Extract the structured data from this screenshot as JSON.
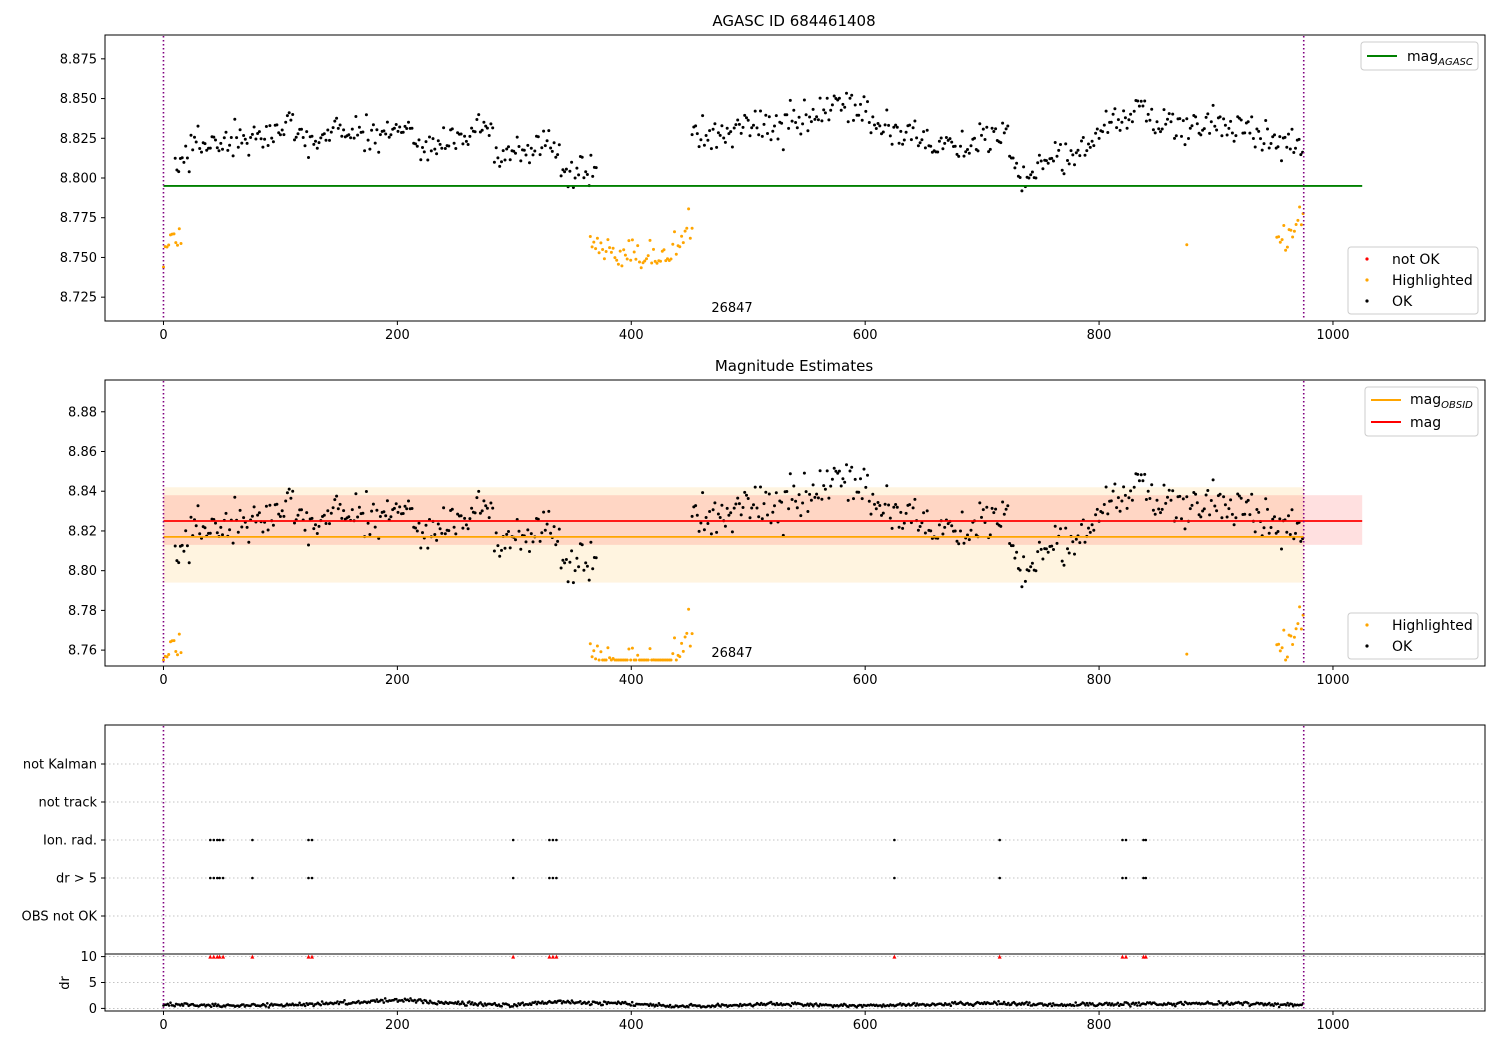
{
  "chart_data": [
    {
      "type": "scatter",
      "title": "AGASC ID 684461408",
      "annotation": "26847",
      "xlim": [
        -50,
        1130
      ],
      "ylim": [
        8.71,
        8.89
      ],
      "xticks": [
        "0",
        "200",
        "400",
        "600",
        "800",
        "1000"
      ],
      "yticks": [
        "8.725",
        "8.750",
        "8.775",
        "8.800",
        "8.825",
        "8.850",
        "8.875"
      ],
      "vlines_x": [
        0,
        975
      ],
      "hline": {
        "name": "mag",
        "subscript": "AGASC",
        "y": 8.795,
        "x": [
          0,
          1025
        ],
        "color": "#008000"
      },
      "legend_lines": [
        {
          "name": "mag",
          "subscript": "AGASC",
          "color": "#008000"
        }
      ],
      "legend_points": [
        {
          "name": "not OK",
          "color": "#ff0000"
        },
        {
          "name": "Highlighted",
          "color": "#ffa500"
        },
        {
          "name": "OK",
          "color": "#000000"
        }
      ],
      "series": [
        {
          "name": "OK",
          "color": "#000000",
          "segments": [
            {
              "x": [
                10,
                370
              ],
              "levels": [
                [
                  10,
                  8.807
                ],
                [
                  30,
                  8.822
                ],
                [
                  60,
                  8.822
                ],
                [
                  90,
                  8.825
                ],
                [
                  110,
                  8.838
                ],
                [
                  125,
                  8.822
                ],
                [
                  150,
                  8.832
                ],
                [
                  175,
                  8.826
                ],
                [
                  200,
                  8.832
                ],
                [
                  230,
                  8.818
                ],
                [
                  260,
                  8.83
                ],
                [
                  275,
                  8.832
                ],
                [
                  290,
                  8.812
                ],
                [
                  310,
                  8.815
                ],
                [
                  330,
                  8.825
                ],
                [
                  345,
                  8.804
                ],
                [
                  365,
                  8.804
                ]
              ]
            },
            {
              "x": [
                452,
                975
              ],
              "levels": [
                [
                  452,
                  8.826
                ],
                [
                  480,
                  8.828
                ],
                [
                  500,
                  8.835
                ],
                [
                  530,
                  8.832
                ],
                [
                  560,
                  8.838
                ],
                [
                  575,
                  8.846
                ],
                [
                  600,
                  8.838
                ],
                [
                  640,
                  8.828
                ],
                [
                  680,
                  8.82
                ],
                [
                  720,
                  8.826
                ],
                [
                  735,
                  8.797
                ],
                [
                  760,
                  8.815
                ],
                [
                  780,
                  8.812
                ],
                [
                  800,
                  8.83
                ],
                [
                  830,
                  8.845
                ],
                [
                  860,
                  8.832
                ],
                [
                  900,
                  8.834
                ],
                [
                  940,
                  8.827
                ],
                [
                  975,
                  8.82
                ]
              ]
            }
          ]
        },
        {
          "name": "Highlighted",
          "color": "#ffa500",
          "segments": [
            {
              "x": [
                0,
                15
              ],
              "levels": [
                [
                  0,
                  8.756
                ],
                [
                  15,
                  8.765
                ]
              ]
            },
            {
              "x": [
                365,
                452
              ],
              "levels": [
                [
                  365,
                  8.756
                ],
                [
                  400,
                  8.755
                ],
                [
                  430,
                  8.748
                ],
                [
                  452,
                  8.768
                ]
              ]
            },
            {
              "x": [
                875,
                875
              ],
              "levels": [
                [
                  875,
                  8.758
                ]
              ]
            },
            {
              "x": [
                952,
                975
              ],
              "levels": [
                [
                  952,
                  8.758
                ],
                [
                  975,
                  8.776
                ]
              ]
            }
          ]
        }
      ]
    },
    {
      "type": "scatter",
      "title": "Magnitude Estimates",
      "annotation": "26847",
      "xlim": [
        -50,
        1130
      ],
      "ylim": [
        8.752,
        8.896
      ],
      "xticks": [
        "0",
        "200",
        "400",
        "600",
        "800",
        "1000"
      ],
      "yticks": [
        "8.76",
        "8.78",
        "8.80",
        "8.82",
        "8.84",
        "8.86",
        "8.88"
      ],
      "vlines_x": [
        0,
        975
      ],
      "bands": [
        {
          "name": "mag_obsid_range",
          "x": [
            0,
            975
          ],
          "y": [
            8.794,
            8.842
          ],
          "color": "#ffa500"
        },
        {
          "name": "mag_range",
          "x": [
            0,
            1025
          ],
          "y": [
            8.813,
            8.838
          ],
          "color": "#ff0000"
        }
      ],
      "hlines": [
        {
          "name": "mag",
          "subscript": "OBSID",
          "y": 8.817,
          "x": [
            0,
            975
          ],
          "color": "#ffa500"
        },
        {
          "name": "mag",
          "y": 8.825,
          "x": [
            0,
            1025
          ],
          "color": "#ff0000"
        }
      ],
      "legend_lines": [
        {
          "name": "mag",
          "subscript": "OBSID",
          "color": "#ffa500"
        },
        {
          "name": "mag",
          "subscript": "",
          "color": "#ff0000"
        }
      ],
      "legend_points": [
        {
          "name": "Highlighted",
          "color": "#ffa500"
        },
        {
          "name": "OK",
          "color": "#000000"
        }
      ]
    },
    {
      "type": "scatter",
      "title": "",
      "xlim": [
        -50,
        1130
      ],
      "xticks": [
        "0",
        "200",
        "400",
        "600",
        "800",
        "1000"
      ],
      "vlines_x": [
        0,
        975
      ],
      "categories": [
        "not Kalman",
        "not track",
        "Ion. rad.",
        "dr > 5",
        "OBS not OK"
      ],
      "flag_x": [
        40,
        43,
        46,
        48,
        51,
        76,
        124,
        127,
        299,
        330,
        333,
        336,
        625,
        715,
        820,
        823,
        838,
        840
      ],
      "flag_categories": [
        "Ion. rad.",
        "dr > 5"
      ],
      "dr": {
        "ylabel": "dr",
        "ylim": [
          -0.5,
          10.5
        ],
        "yticks": [
          "0",
          "5",
          "10"
        ],
        "flagged_value": 10,
        "flagged_color": "#ff0000",
        "x": [
          0,
          975
        ],
        "levels": [
          [
            0,
            0.7
          ],
          [
            100,
            0.6
          ],
          [
            210,
            1.7
          ],
          [
            230,
            1.1
          ],
          [
            300,
            0.6
          ],
          [
            335,
            1.3
          ],
          [
            400,
            0.9
          ],
          [
            440,
            0.4
          ],
          [
            520,
            0.8
          ],
          [
            600,
            0.5
          ],
          [
            700,
            1.0
          ],
          [
            760,
            0.7
          ],
          [
            850,
            0.9
          ],
          [
            920,
            1.0
          ],
          [
            975,
            0.6
          ]
        ]
      }
    }
  ]
}
